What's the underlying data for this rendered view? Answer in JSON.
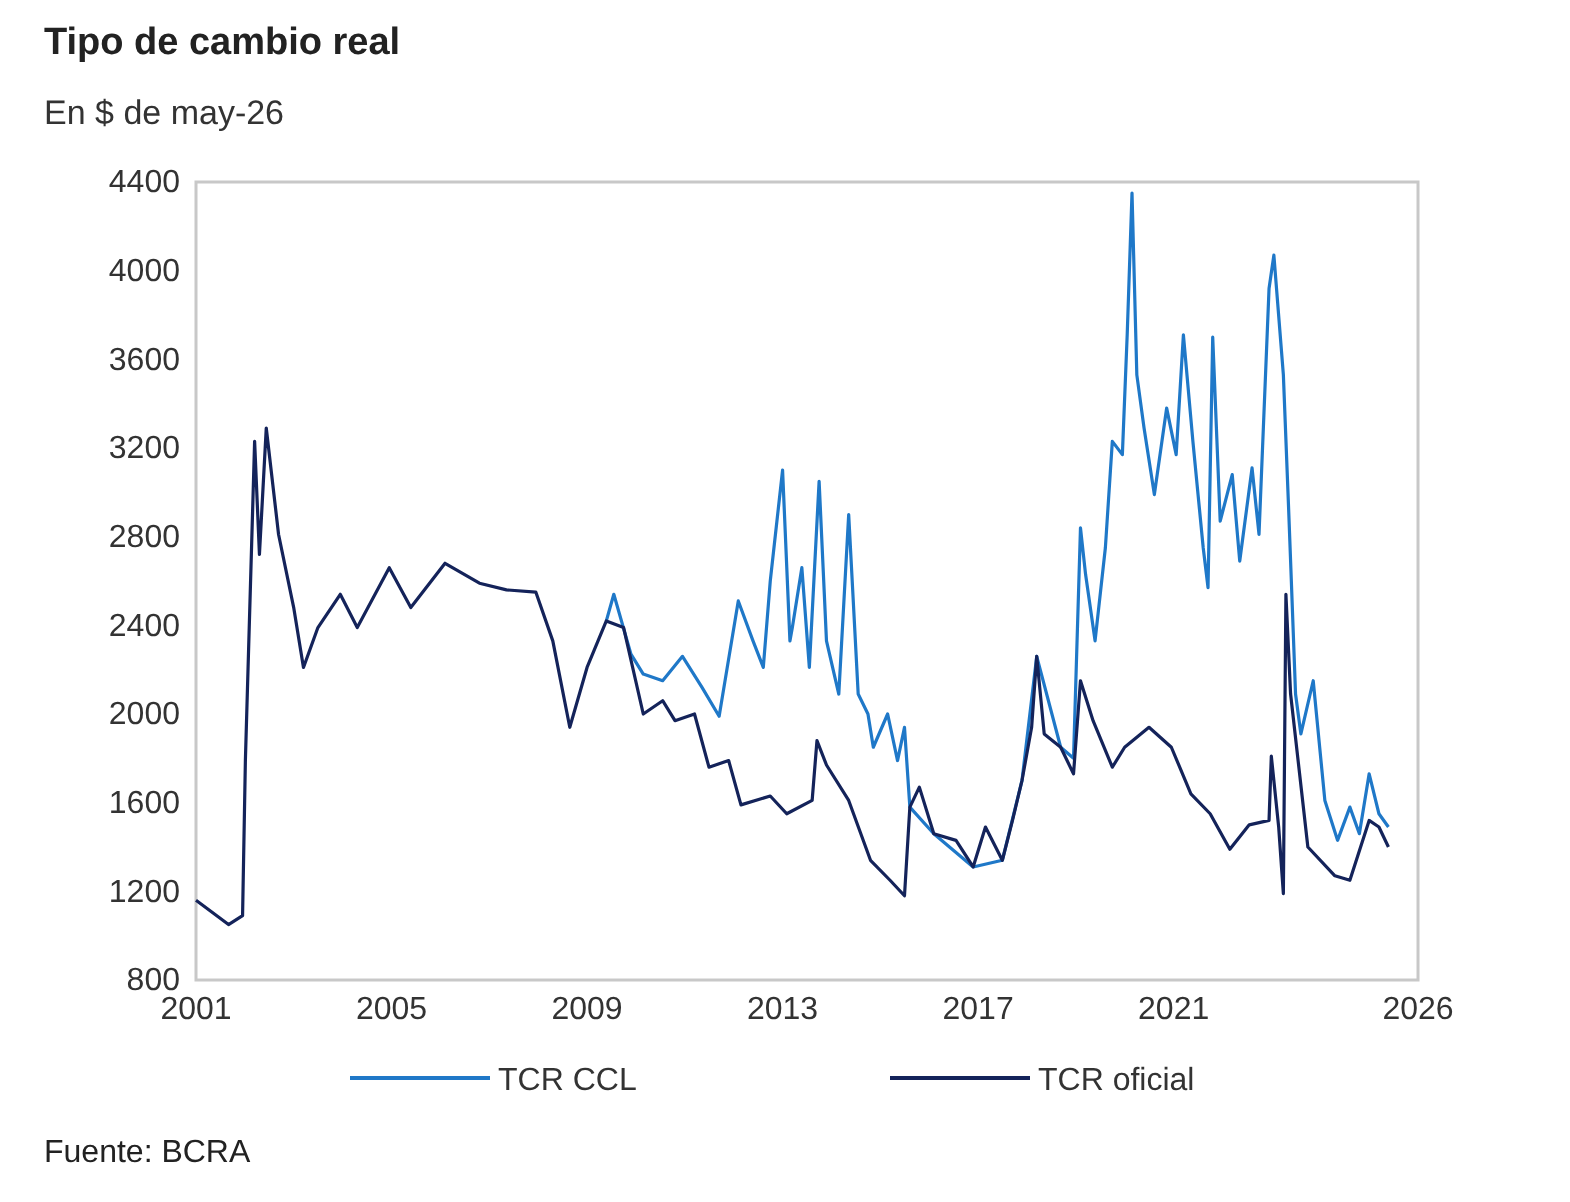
{
  "chart_data": {
    "type": "line",
    "title": "Tipo de cambio real",
    "subtitle": "En $ de may-26",
    "annotations": [
      "Fuente: BCRA"
    ],
    "xlim": [
      "2001-01-01",
      "2026-01-01"
    ],
    "xticks": [
      {
        "value": "2001-01-01",
        "label": "2001"
      },
      {
        "value": "2005-01-01",
        "label": "2005"
      },
      {
        "value": "2009-01-01",
        "label": "2009"
      },
      {
        "value": "2013-01-01",
        "label": "2013"
      },
      {
        "value": "2017-01-01",
        "label": "2017"
      },
      {
        "value": "2021-01-01",
        "label": "2021"
      },
      {
        "value": "2026-01-01",
        "label": "2026"
      }
    ],
    "ylim": [
      800,
      4400
    ],
    "yticks": [
      800,
      1200,
      1600,
      2000,
      2400,
      2800,
      3200,
      3600,
      4000,
      4400
    ],
    "grid": false,
    "legend": "bottom",
    "series": [
      {
        "name": "TCR CCL",
        "color": "#1f78c8",
        "x": [
          "2009-05-25",
          "2009-07-20",
          "2009-11-25",
          "2010-02-25",
          "2010-07-20",
          "2010-12-15",
          "2011-05-10",
          "2011-09-15",
          "2012-02-05",
          "2012-05-25",
          "2012-08-10",
          "2012-10-01",
          "2013-01-01",
          "2013-02-25",
          "2013-03-15",
          "2013-05-25",
          "2013-07-20",
          "2013-10-01",
          "2013-11-25",
          "2014-02-25",
          "2014-05-10",
          "2014-07-20",
          "2014-10-01",
          "2014-11-10",
          "2015-02-25",
          "2015-05-10",
          "2015-07-01",
          "2015-08-10",
          "2016-02-05",
          "2016-11-25",
          "2017-07-01",
          "2017-11-25",
          "2018-03-15",
          "2018-09-10",
          "2018-12-15",
          "2019-02-05",
          "2019-03-15",
          "2019-05-25",
          "2019-08-10",
          "2019-10-01",
          "2019-12-15",
          "2020-01-20",
          "2020-02-25",
          "2020-04-01",
          "2020-05-25",
          "2020-08-10",
          "2020-11-10",
          "2021-01-20",
          "2021-03-15",
          "2021-05-25",
          "2021-08-10",
          "2021-09-15",
          "2021-10-20",
          "2021-12-15",
          "2022-03-15",
          "2022-05-10",
          "2022-08-10",
          "2022-10-01",
          "2022-12-15",
          "2023-01-20",
          "2023-04-01",
          "2023-05-10",
          "2023-05-25",
          "2023-07-01",
          "2023-08-10",
          "2023-11-10",
          "2024-02-05",
          "2024-05-10",
          "2024-08-10",
          "2024-10-20",
          "2025-01-01",
          "2025-03-15",
          "2025-05-25"
        ],
        "values": [
          2420,
          2540,
          2270,
          2180,
          2150,
          2260,
          2120,
          1990,
          2510,
          2330,
          2210,
          2600,
          3100,
          2330,
          2390,
          2660,
          2210,
          3050,
          2330,
          2090,
          2900,
          2090,
          2000,
          1850,
          2000,
          1790,
          1940,
          1580,
          1460,
          1310,
          1340,
          1700,
          2260,
          1850,
          1800,
          2840,
          2630,
          2330,
          2750,
          3230,
          3170,
          3710,
          4350,
          3530,
          3290,
          2990,
          3380,
          3170,
          3710,
          3230,
          2750,
          2570,
          3700,
          2870,
          3080,
          2690,
          3110,
          2810,
          3920,
          4070,
          3530,
          2930,
          2690,
          2090,
          1910,
          2150,
          1610,
          1430,
          1580,
          1460,
          1730,
          1550,
          1490
        ]
      },
      {
        "name": "TCR oficial",
        "color": "#14235a",
        "x": [
          "2001-01-01",
          "2001-09-01",
          "2001-12-15",
          "2002-01-05",
          "2002-03-15",
          "2002-04-20",
          "2002-06-10",
          "2002-09-10",
          "2003-01-01",
          "2003-03-15",
          "2003-07-01",
          "2003-12-15",
          "2004-04-20",
          "2004-12-15",
          "2005-05-25",
          "2006-02-05",
          "2006-10-20",
          "2007-05-10",
          "2007-12-15",
          "2008-04-20",
          "2008-08-25",
          "2009-01-01",
          "2009-05-25",
          "2009-10-01",
          "2010-02-25",
          "2010-07-20",
          "2010-10-20",
          "2011-03-15",
          "2011-07-01",
          "2011-11-25",
          "2012-02-25",
          "2012-10-01",
          "2013-02-01",
          "2013-08-10",
          "2013-09-15",
          "2013-11-25",
          "2014-05-10",
          "2014-10-20",
          "2015-03-15",
          "2015-07-01",
          "2015-08-10",
          "2015-10-20",
          "2016-02-05",
          "2016-07-20",
          "2016-11-25",
          "2017-02-25",
          "2017-07-01",
          "2017-09-15",
          "2017-11-25",
          "2018-02-05",
          "2018-03-15",
          "2018-05-10",
          "2018-09-10",
          "2018-12-15",
          "2019-02-05",
          "2019-05-10",
          "2019-10-01",
          "2020-01-01",
          "2020-07-01",
          "2020-12-15",
          "2021-05-10",
          "2021-10-01",
          "2022-02-25",
          "2022-07-20",
          "2022-12-15",
          "2023-01-01",
          "2023-02-25",
          "2023-04-01",
          "2023-04-20",
          "2023-05-25",
          "2023-10-01",
          "2024-04-20",
          "2024-08-10",
          "2025-01-01",
          "2025-03-15",
          "2025-05-25"
        ],
        "values": [
          1160,
          1050,
          1090,
          1790,
          3230,
          2720,
          3290,
          2810,
          2480,
          2210,
          2390,
          2540,
          2390,
          2660,
          2480,
          2680,
          2590,
          2560,
          2550,
          2330,
          1940,
          2210,
          2420,
          2390,
          2000,
          2060,
          1970,
          2000,
          1760,
          1790,
          1590,
          1630,
          1550,
          1610,
          1880,
          1770,
          1610,
          1340,
          1250,
          1180,
          1580,
          1670,
          1460,
          1430,
          1310,
          1490,
          1340,
          1520,
          1700,
          1940,
          2260,
          1910,
          1850,
          1730,
          2150,
          1970,
          1760,
          1850,
          1940,
          1850,
          1640,
          1550,
          1390,
          1500,
          1520,
          1810,
          1490,
          1190,
          2540,
          2090,
          1400,
          1270,
          1250,
          1520,
          1490,
          1400
        ]
      }
    ]
  }
}
